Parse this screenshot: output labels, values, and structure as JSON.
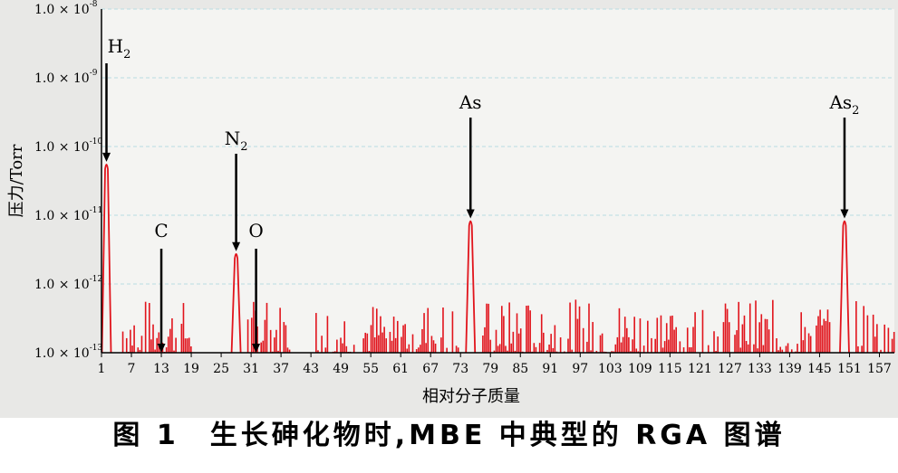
{
  "caption": "图 1　生长砷化物时,MBE 中典型的 RGA 图谱",
  "colors": {
    "panel": "#e8e8e6",
    "plot": "#f4f4f2",
    "grid": "#b8dbe3",
    "trace": "#e1141c",
    "arrow": "#000000"
  },
  "chart_data": {
    "type": "line",
    "xlabel": "相对分子质量",
    "ylabel": "压力/Torr",
    "x_ticks": [
      1,
      7,
      13,
      19,
      25,
      31,
      37,
      43,
      49,
      55,
      61,
      67,
      73,
      79,
      85,
      91,
      97,
      103,
      109,
      115,
      121,
      127,
      133,
      139,
      145,
      151,
      157
    ],
    "xlim": [
      1,
      160
    ],
    "ylim_log10": [
      -13,
      -8
    ],
    "y_scale": "log",
    "y_ticks": [
      {
        "exp": -8,
        "label": "1.0 × 10",
        "sup": "-8"
      },
      {
        "exp": -9,
        "label": "1.0 × 10",
        "sup": "-9"
      },
      {
        "exp": -10,
        "label": "1.0 × 10",
        "sup": "-10"
      },
      {
        "exp": -11,
        "label": "1.0 × 10",
        "sup": "-11"
      },
      {
        "exp": -12,
        "label": "1.0 × 10",
        "sup": "-12"
      },
      {
        "exp": -13,
        "label": "1.0 × 10",
        "sup": "-13"
      }
    ],
    "grid": true,
    "peaks": [
      {
        "mass": 2,
        "pressure": 6e-11
      },
      {
        "mass": 28,
        "pressure": 3e-12
      },
      {
        "mass": 75,
        "pressure": 9e-12
      },
      {
        "mass": 150,
        "pressure": 9e-12
      }
    ],
    "noise_floor": 1e-13,
    "noise_max": 6e-13,
    "annotations": [
      {
        "label": "H",
        "sub": "2",
        "mass": 2,
        "arrow_tip_pressure": 6e-11
      },
      {
        "label": "C",
        "sub": "",
        "mass": 13,
        "arrow_tip_pressure": 1e-13
      },
      {
        "label": "N",
        "sub": "2",
        "mass": 28,
        "arrow_tip_pressure": 3e-12
      },
      {
        "label": "O",
        "sub": "",
        "mass": 32,
        "arrow_tip_pressure": 1e-13
      },
      {
        "label": "As",
        "sub": "",
        "mass": 75,
        "arrow_tip_pressure": 9e-12
      },
      {
        "label": "As",
        "sub": "2",
        "mass": 150,
        "arrow_tip_pressure": 9e-12
      }
    ]
  }
}
